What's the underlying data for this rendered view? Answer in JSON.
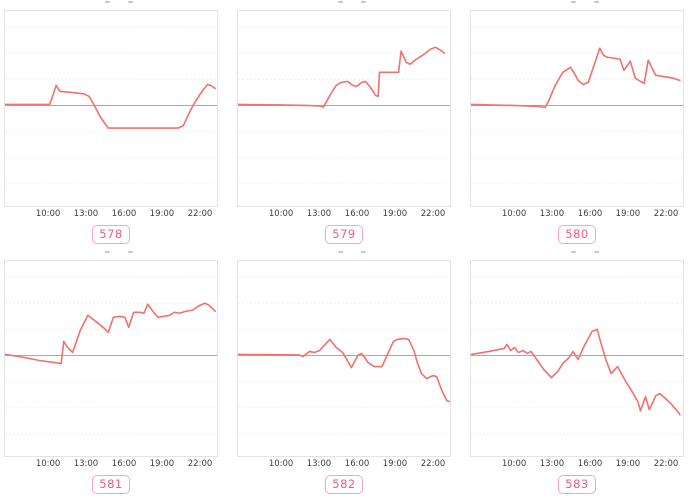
{
  "colors": {
    "line": "#f4706b",
    "zero_line": "#a9a9a9",
    "grid_line": "#ededed",
    "panel_border": "#e3e3e3",
    "tick_text": "#3d3d3d",
    "badge_border": "#f6a6c2",
    "badge_text": "#eb5f7d"
  },
  "axis": {
    "ticks": [
      "10:00",
      "13:00",
      "16:00",
      "19:00",
      "22:00"
    ],
    "tick_hours": [
      10,
      13,
      16,
      19,
      22
    ]
  },
  "chart_common": {
    "type": "line",
    "x_tick_labels": [
      "10:00",
      "13:00",
      "16:00",
      "19:00",
      "22:00"
    ],
    "x_range_hours": [
      6.5,
      23.4
    ],
    "ylim": [
      -102,
      95
    ],
    "y_tick_labels": "none (unlabeled axis)",
    "zero_baseline": true,
    "grid": "horizontal-dotted",
    "legend": "none",
    "points_format": "[hour_of_day, value_in_relative_units_above_zero_line]"
  },
  "chart_data": [
    {
      "type": "line",
      "label": "578",
      "points": [
        [
          6.5,
          1
        ],
        [
          9.9,
          1
        ],
        [
          10.2,
          1
        ],
        [
          10.5,
          12
        ],
        [
          10.7,
          20
        ],
        [
          11.0,
          14
        ],
        [
          11.5,
          13.5
        ],
        [
          12.3,
          12.5
        ],
        [
          12.9,
          11.5
        ],
        [
          13.3,
          9
        ],
        [
          13.7,
          0
        ],
        [
          14.2,
          -12
        ],
        [
          14.8,
          -22.5
        ],
        [
          17.0,
          -22.5
        ],
        [
          20.3,
          -22.5
        ],
        [
          20.7,
          -20
        ],
        [
          21.1,
          -9
        ],
        [
          21.5,
          1
        ],
        [
          22.1,
          13
        ],
        [
          22.6,
          21
        ],
        [
          22.9,
          19.5
        ],
        [
          23.2,
          17
        ]
      ]
    },
    {
      "type": "line",
      "label": "579",
      "points": [
        [
          6.5,
          1
        ],
        [
          10.0,
          0.5
        ],
        [
          12.0,
          0
        ],
        [
          13.1,
          -0.5
        ],
        [
          13.4,
          -1.5
        ],
        [
          13.9,
          10
        ],
        [
          14.4,
          20
        ],
        [
          14.8,
          23
        ],
        [
          15.3,
          24
        ],
        [
          15.7,
          20
        ],
        [
          16.0,
          19
        ],
        [
          16.4,
          23
        ],
        [
          16.7,
          24
        ],
        [
          17.1,
          18
        ],
        [
          17.5,
          10
        ],
        [
          17.7,
          9
        ],
        [
          17.8,
          33
        ],
        [
          18.5,
          33
        ],
        [
          19.3,
          33
        ],
        [
          19.5,
          54
        ],
        [
          19.9,
          43
        ],
        [
          20.2,
          41
        ],
        [
          20.7,
          46
        ],
        [
          21.2,
          50
        ],
        [
          21.8,
          56
        ],
        [
          22.2,
          58
        ],
        [
          22.6,
          55
        ],
        [
          22.9,
          52
        ]
      ]
    },
    {
      "type": "line",
      "label": "580",
      "points": [
        [
          6.5,
          1
        ],
        [
          10.0,
          0
        ],
        [
          12.1,
          -1
        ],
        [
          12.5,
          -2
        ],
        [
          12.8,
          5
        ],
        [
          13.3,
          20
        ],
        [
          13.9,
          33
        ],
        [
          14.5,
          38
        ],
        [
          14.8,
          32
        ],
        [
          15.1,
          25
        ],
        [
          15.5,
          21
        ],
        [
          15.9,
          23
        ],
        [
          16.3,
          38
        ],
        [
          16.8,
          57
        ],
        [
          17.1,
          50
        ],
        [
          17.4,
          48
        ],
        [
          18.0,
          47
        ],
        [
          18.4,
          46
        ],
        [
          18.7,
          35
        ],
        [
          19.2,
          44
        ],
        [
          19.6,
          27
        ],
        [
          20.0,
          24
        ],
        [
          20.3,
          22
        ],
        [
          20.6,
          45
        ],
        [
          21.2,
          30
        ],
        [
          21.7,
          29
        ],
        [
          22.2,
          28
        ],
        [
          22.6,
          27
        ],
        [
          23.1,
          25
        ]
      ]
    },
    {
      "type": "line",
      "label": "581",
      "points": [
        [
          6.5,
          1
        ],
        [
          7.8,
          -1
        ],
        [
          9.4,
          -5
        ],
        [
          10.6,
          -7
        ],
        [
          11.1,
          -8
        ],
        [
          11.3,
          14
        ],
        [
          11.6,
          8
        ],
        [
          12.0,
          3
        ],
        [
          12.6,
          25
        ],
        [
          13.2,
          40
        ],
        [
          13.9,
          33
        ],
        [
          14.4,
          28
        ],
        [
          14.8,
          23
        ],
        [
          15.2,
          38
        ],
        [
          15.7,
          39
        ],
        [
          16.1,
          38
        ],
        [
          16.4,
          28
        ],
        [
          16.8,
          43
        ],
        [
          17.3,
          43
        ],
        [
          17.6,
          42
        ],
        [
          17.9,
          51
        ],
        [
          18.3,
          44
        ],
        [
          18.7,
          38
        ],
        [
          19.2,
          39
        ],
        [
          19.6,
          40
        ],
        [
          20.0,
          43
        ],
        [
          20.4,
          42
        ],
        [
          20.9,
          44
        ],
        [
          21.4,
          45
        ],
        [
          22.0,
          50
        ],
        [
          22.4,
          52
        ],
        [
          22.7,
          50
        ],
        [
          23.2,
          44
        ]
      ]
    },
    {
      "type": "line",
      "label": "582",
      "points": [
        [
          6.5,
          1
        ],
        [
          11.5,
          0.5
        ],
        [
          11.8,
          -1
        ],
        [
          12.3,
          4
        ],
        [
          12.7,
          3
        ],
        [
          13.1,
          5
        ],
        [
          13.9,
          16
        ],
        [
          14.4,
          8
        ],
        [
          14.9,
          3
        ],
        [
          15.6,
          -12
        ],
        [
          16.1,
          0
        ],
        [
          16.4,
          2
        ],
        [
          16.9,
          -7
        ],
        [
          17.4,
          -11
        ],
        [
          18.0,
          -11
        ],
        [
          18.5,
          3
        ],
        [
          18.9,
          14
        ],
        [
          19.2,
          16
        ],
        [
          19.7,
          17
        ],
        [
          20.1,
          16
        ],
        [
          20.5,
          5
        ],
        [
          20.8,
          -8
        ],
        [
          21.1,
          -18
        ],
        [
          21.5,
          -23
        ],
        [
          22.0,
          -20
        ],
        [
          22.3,
          -21
        ],
        [
          22.7,
          -35
        ],
        [
          23.1,
          -45
        ],
        [
          23.4,
          -46
        ]
      ]
    },
    {
      "type": "line",
      "label": "583",
      "points": [
        [
          6.5,
          1
        ],
        [
          8.1,
          4
        ],
        [
          8.9,
          6
        ],
        [
          9.3,
          7
        ],
        [
          9.5,
          11
        ],
        [
          9.8,
          5
        ],
        [
          10.1,
          8
        ],
        [
          10.4,
          3
        ],
        [
          10.8,
          5
        ],
        [
          11.1,
          2
        ],
        [
          11.4,
          4
        ],
        [
          11.9,
          -5
        ],
        [
          12.4,
          -14
        ],
        [
          13.0,
          -22
        ],
        [
          13.5,
          -16
        ],
        [
          13.9,
          -8
        ],
        [
          14.4,
          -2
        ],
        [
          14.7,
          4
        ],
        [
          15.1,
          -4
        ],
        [
          15.6,
          10
        ],
        [
          16.2,
          24
        ],
        [
          16.6,
          26
        ],
        [
          16.9,
          12
        ],
        [
          17.3,
          -5
        ],
        [
          17.7,
          -18
        ],
        [
          18.2,
          -11
        ],
        [
          18.8,
          -25
        ],
        [
          19.3,
          -35
        ],
        [
          19.8,
          -46
        ],
        [
          20.0,
          -55
        ],
        [
          20.4,
          -41
        ],
        [
          20.7,
          -54
        ],
        [
          21.2,
          -40
        ],
        [
          21.5,
          -38
        ],
        [
          21.9,
          -42
        ],
        [
          22.4,
          -48
        ],
        [
          23.0,
          -57
        ],
        [
          23.1,
          -59
        ]
      ]
    }
  ]
}
